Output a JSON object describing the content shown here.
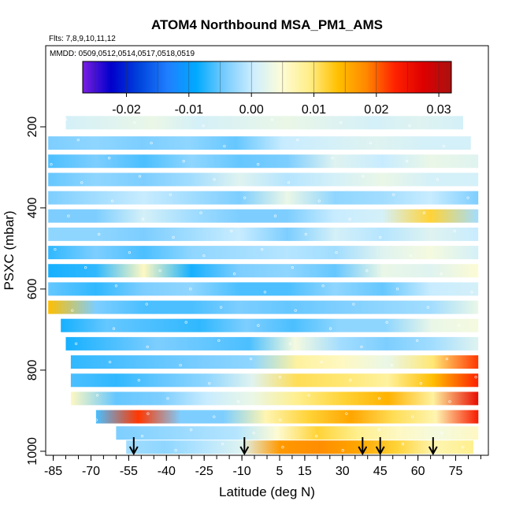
{
  "chart_data": {
    "type": "heatmap",
    "title": "ATOM4 Northbound MSA_PM1_AMS",
    "flights_label": "Flts: 7,8,9,10,11,12",
    "dates_label": "MMDD: 0509,0512,0514,0517,0518,0519",
    "xlabel": "Latitude (deg N)",
    "ylabel": "PSXC (mbar)",
    "xlim": [
      -88,
      88
    ],
    "ylim": [
      1010,
      0
    ],
    "x_ticks": [
      -85,
      -70,
      -55,
      -40,
      -25,
      -10,
      5,
      15,
      30,
      45,
      60,
      75
    ],
    "y_ticks": [
      200,
      400,
      600,
      800,
      1000
    ],
    "colorbar": {
      "range": [
        -0.027,
        0.032
      ],
      "ticks": [
        -0.02,
        -0.01,
        0.0,
        0.01,
        0.02,
        0.03
      ],
      "tick_labels": [
        "-0.02",
        "-0.01",
        "0.00",
        "0.01",
        "0.02",
        "0.03"
      ],
      "colors": [
        "#7a1fe0",
        "#0000cc",
        "#0044dd",
        "#1f7fff",
        "#00aaff",
        "#77ccff",
        "#cceeff",
        "#fdfcd8",
        "#ffee88",
        "#ffc000",
        "#ff8800",
        "#ff2200",
        "#dd0000",
        "#aa1111"
      ]
    },
    "profile_arrows_lat": [
      -53,
      -9,
      38,
      45,
      66
    ],
    "bands": [
      {
        "p": 190,
        "lat": [
          -80,
          78
        ],
        "v": [
          0.001,
          0.002,
          0.003,
          0.001,
          0.002,
          0.003,
          0.002,
          0.001,
          0.002,
          0.001
        ]
      },
      {
        "p": 240,
        "lat": [
          -87,
          81
        ],
        "v": [
          -0.004,
          -0.003,
          -0.004,
          -0.003,
          -0.005,
          0.0,
          0.001,
          0.002,
          0.001,
          0.001
        ]
      },
      {
        "p": 285,
        "lat": [
          -87,
          84
        ],
        "v": [
          -0.006,
          -0.004,
          -0.006,
          -0.003,
          -0.005,
          -0.004,
          0.002,
          0.0,
          0.003,
          0.002
        ]
      },
      {
        "p": 330,
        "lat": [
          -87,
          84
        ],
        "v": [
          -0.005,
          -0.003,
          -0.004,
          -0.002,
          0.002,
          -0.001,
          0.001,
          0.003,
          0.001,
          0.001
        ]
      },
      {
        "p": 375,
        "lat": [
          -87,
          84
        ],
        "v": [
          -0.004,
          -0.002,
          0.0,
          -0.002,
          -0.004,
          0.003,
          -0.003,
          -0.002,
          0.0,
          -0.004
        ]
      },
      {
        "p": 420,
        "lat": [
          -87,
          84
        ],
        "v": [
          -0.004,
          -0.004,
          0.001,
          -0.002,
          -0.004,
          -0.004,
          0.0,
          0.001,
          0.012,
          -0.002
        ]
      },
      {
        "p": 465,
        "lat": [
          -87,
          84
        ],
        "v": [
          -0.003,
          -0.003,
          -0.004,
          -0.002,
          0.0,
          -0.004,
          0.001,
          -0.001,
          0.002,
          0.0
        ]
      },
      {
        "p": 510,
        "lat": [
          -87,
          84
        ],
        "v": [
          -0.007,
          -0.004,
          -0.006,
          -0.003,
          -0.002,
          -0.001,
          -0.002,
          0.002,
          0.004,
          0.001
        ]
      },
      {
        "p": 555,
        "lat": [
          -87,
          84
        ],
        "v": [
          -0.008,
          -0.007,
          0.006,
          -0.008,
          -0.004,
          -0.003,
          -0.005,
          0.003,
          0.002,
          0.005
        ]
      },
      {
        "p": 600,
        "lat": [
          -87,
          84
        ],
        "v": [
          -0.005,
          -0.007,
          -0.004,
          -0.003,
          -0.006,
          -0.006,
          -0.003,
          -0.005,
          0.0,
          0.001
        ]
      },
      {
        "p": 645,
        "lat": [
          -87,
          84
        ],
        "v": [
          0.014,
          -0.004,
          -0.006,
          -0.006,
          -0.004,
          -0.005,
          -0.004,
          -0.003,
          -0.002,
          0.003
        ]
      },
      {
        "p": 690,
        "lat": [
          -82,
          84
        ],
        "v": [
          -0.008,
          -0.005,
          -0.006,
          -0.007,
          -0.004,
          -0.006,
          -0.003,
          -0.003,
          0.003,
          0.004
        ]
      },
      {
        "p": 735,
        "lat": [
          -80,
          84
        ],
        "v": [
          -0.008,
          -0.006,
          -0.004,
          -0.005,
          -0.006,
          0.004,
          -0.002,
          -0.004,
          -0.002,
          0.002
        ]
      },
      {
        "p": 780,
        "lat": [
          -78,
          84
        ],
        "v": [
          -0.007,
          -0.006,
          -0.005,
          -0.004,
          -0.003,
          0.008,
          0.006,
          0.003,
          0.01,
          0.022
        ]
      },
      {
        "p": 825,
        "lat": [
          -78,
          84
        ],
        "v": [
          -0.006,
          -0.007,
          -0.005,
          -0.003,
          0.002,
          0.011,
          0.01,
          0.008,
          0.014,
          0.023
        ]
      },
      {
        "p": 870,
        "lat": [
          -78,
          84
        ],
        "v": [
          0.006,
          -0.005,
          -0.004,
          0.0,
          0.003,
          0.009,
          0.012,
          0.015,
          0.008,
          0.026
        ]
      },
      {
        "p": 915,
        "lat": [
          -68,
          84
        ],
        "v": [
          -0.006,
          0.022,
          -0.004,
          -0.004,
          0.007,
          0.012,
          0.016,
          0.011,
          0.007,
          0.024
        ]
      },
      {
        "p": 955,
        "lat": [
          -60,
          84
        ],
        "v": [
          -0.004,
          -0.003,
          -0.002,
          -0.001,
          0.005,
          0.012,
          0.009,
          0.006,
          0.004,
          0.006
        ]
      },
      {
        "p": 990,
        "lat": [
          -56,
          82
        ],
        "v": [
          -0.002,
          -0.003,
          -0.001,
          0.002,
          0.017,
          0.018,
          0.016,
          0.012,
          0.007,
          0.009
        ]
      }
    ]
  }
}
